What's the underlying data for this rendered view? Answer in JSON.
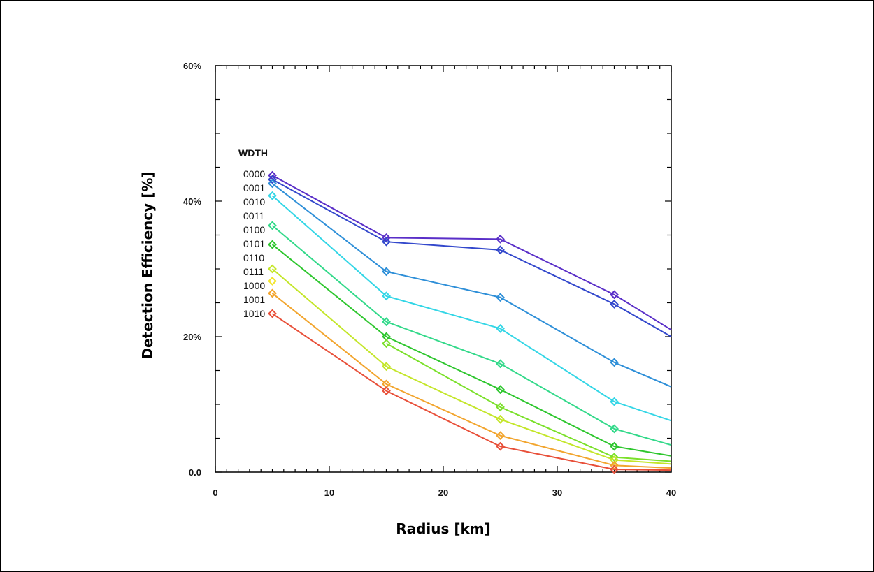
{
  "chart_data": {
    "type": "line",
    "xlabel": "Radius [km]",
    "ylabel": "Detection Efficiency [%]",
    "xlim": [
      0,
      40
    ],
    "ylim": [
      0,
      60
    ],
    "x_ticks": [
      {
        "value": 0,
        "label": "0"
      },
      {
        "value": 10,
        "label": "10"
      },
      {
        "value": 20,
        "label": "20"
      },
      {
        "value": 30,
        "label": "30"
      },
      {
        "value": 40,
        "label": "40"
      }
    ],
    "y_ticks": [
      {
        "value": 0,
        "label": "0.0"
      },
      {
        "value": 20,
        "label": "20%"
      },
      {
        "value": 40,
        "label": "40%"
      },
      {
        "value": 60,
        "label": "60%"
      }
    ],
    "legend_title": "WDTH",
    "grid": false,
    "x": [
      5,
      15,
      25,
      35,
      40
    ],
    "series": [
      {
        "name": "0000",
        "color": "#5a2fc8",
        "values": [
          43.8,
          34.6,
          34.4,
          26.2,
          21.0
        ]
      },
      {
        "name": "0001",
        "color": "#3348cc",
        "values": [
          43.2,
          34.0,
          32.8,
          24.8,
          20.0
        ]
      },
      {
        "name": "0010",
        "color": "#2e8fd8",
        "values": [
          42.6,
          29.6,
          25.8,
          16.2,
          12.6
        ]
      },
      {
        "name": "0011",
        "color": "#33d6e6",
        "values": [
          40.8,
          26.0,
          21.2,
          10.4,
          7.6
        ]
      },
      {
        "name": "0100",
        "color": "#33d98a",
        "values": [
          36.4,
          22.2,
          16.0,
          6.4,
          4.0
        ]
      },
      {
        "name": "0101",
        "color": "#2ec62e",
        "values": [
          33.6,
          20.0,
          12.2,
          3.8,
          2.4
        ]
      },
      {
        "name": "0110",
        "color": "#7be02a",
        "values": [
          null,
          19.0,
          9.6,
          2.2,
          1.6
        ]
      },
      {
        "name": "0111",
        "color": "#c4e62a",
        "values": [
          30.0,
          15.6,
          7.8,
          1.8,
          1.2
        ]
      },
      {
        "name": "1000",
        "color": "#f2e52a",
        "values": [
          28.2,
          null,
          null,
          null,
          null
        ]
      },
      {
        "name": "1001",
        "color": "#f2a52e",
        "values": [
          26.4,
          13.0,
          5.4,
          1.0,
          0.6
        ]
      },
      {
        "name": "1010",
        "color": "#e8503a",
        "values": [
          23.4,
          12.0,
          3.8,
          0.4,
          0.3
        ]
      }
    ]
  }
}
